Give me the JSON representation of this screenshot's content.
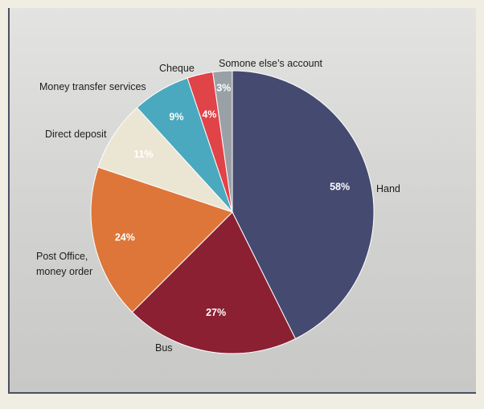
{
  "chart_data": {
    "type": "pie",
    "title": "",
    "start": "top",
    "direction": "clockwise",
    "slices": [
      {
        "label": "Hand",
        "value": 58,
        "value_label": "58%",
        "color": "#454a70"
      },
      {
        "label": "Bus",
        "value": 27,
        "value_label": "27%",
        "color": "#8b2033"
      },
      {
        "label": "Post Office,|money order",
        "value": 24,
        "value_label": "24%",
        "color": "#dd7638"
      },
      {
        "label": "Direct deposit",
        "value": 11,
        "value_label": "11%",
        "color": "#ebe5d4"
      },
      {
        "label": "Money transfer services",
        "value": 9,
        "value_label": "9%",
        "color": "#4aa9bf"
      },
      {
        "label": "Cheque",
        "value": 4,
        "value_label": "4%",
        "color": "#e04348"
      },
      {
        "label": "Somone else’s account",
        "value": 3,
        "value_label": "3%",
        "color": "#9aa1a6"
      }
    ]
  }
}
